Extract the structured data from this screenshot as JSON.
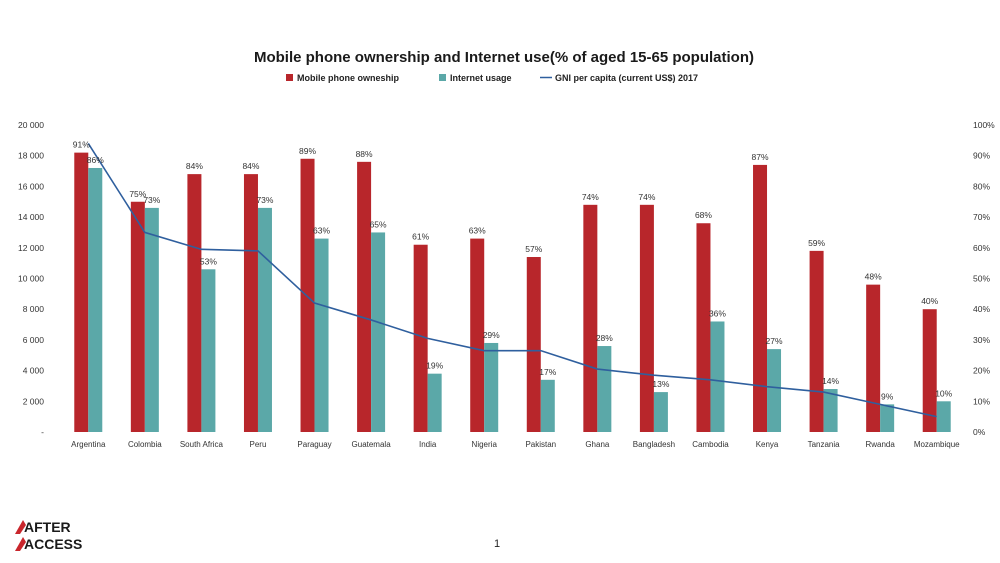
{
  "chart_data": {
    "type": "bar",
    "title": "Mobile phone ownership and Internet use(% of aged 15-65 population)",
    "categories": [
      "Argentina",
      "Colombia",
      "South Africa",
      "Peru",
      "Paraguay",
      "Guatemala",
      "India",
      "Nigeria",
      "Pakistan",
      "Ghana",
      "Bangladesh",
      "Cambodia",
      "Kenya",
      "Tanzania",
      "Rwanda",
      "Mozambique"
    ],
    "series": [
      {
        "name": "Mobile phone owneship",
        "type": "bar",
        "axis": "right",
        "color": "#b8262b",
        "values": [
          91,
          75,
          84,
          84,
          89,
          88,
          61,
          63,
          57,
          74,
          74,
          68,
          87,
          59,
          48,
          40
        ],
        "labels": [
          "91%",
          "75%",
          "84%",
          "84%",
          "89%",
          "88%",
          "61%",
          "63%",
          "57%",
          "74%",
          "74%",
          "68%",
          "87%",
          "59%",
          "48%",
          "40%"
        ]
      },
      {
        "name": "Internet usage",
        "type": "bar",
        "axis": "right",
        "color": "#5ba8a8",
        "values": [
          86,
          73,
          53,
          73,
          63,
          65,
          19,
          29,
          17,
          28,
          13,
          36,
          27,
          14,
          9,
          10
        ],
        "labels": [
          "86%",
          "73%",
          "53%",
          "73%",
          "63%",
          "65%",
          "19%",
          "29%",
          "17%",
          "28%",
          "13%",
          "36%",
          "27%",
          "14%",
          "9%",
          "10%"
        ]
      },
      {
        "name": "GNI per capita (current US$) 2017",
        "type": "line",
        "axis": "left",
        "color": "#2f5f9e",
        "values": [
          18800,
          13000,
          11900,
          11800,
          8400,
          7300,
          6100,
          5300,
          5300,
          4100,
          3700,
          3400,
          2950,
          2600,
          1800,
          1000
        ]
      }
    ],
    "left_axis": {
      "min": 0,
      "max": 20000,
      "tick_values": [
        0,
        2000,
        4000,
        6000,
        8000,
        10000,
        12000,
        14000,
        16000,
        18000,
        20000
      ],
      "tick_labels": [
        "-",
        "2 000",
        "4 000",
        "6 000",
        "8 000",
        "10 000",
        "12 000",
        "14 000",
        "16 000",
        "18 000",
        "20 000"
      ]
    },
    "right_axis": {
      "min": 0,
      "max": 100,
      "tick_values": [
        0,
        10,
        20,
        30,
        40,
        50,
        60,
        70,
        80,
        90,
        100
      ],
      "tick_labels": [
        "0%",
        "10%",
        "20%",
        "30%",
        "40%",
        "50%",
        "60%",
        "70%",
        "80%",
        "90%",
        "100%"
      ]
    },
    "grid": false,
    "legend_position": "top"
  },
  "footer": {
    "logo_text_top": "AFTER",
    "logo_text_bottom": "ACCESS",
    "page_number": "1"
  },
  "colors": {
    "logo_red": "#c9262c",
    "logo_dark": "#1a1a1a"
  }
}
